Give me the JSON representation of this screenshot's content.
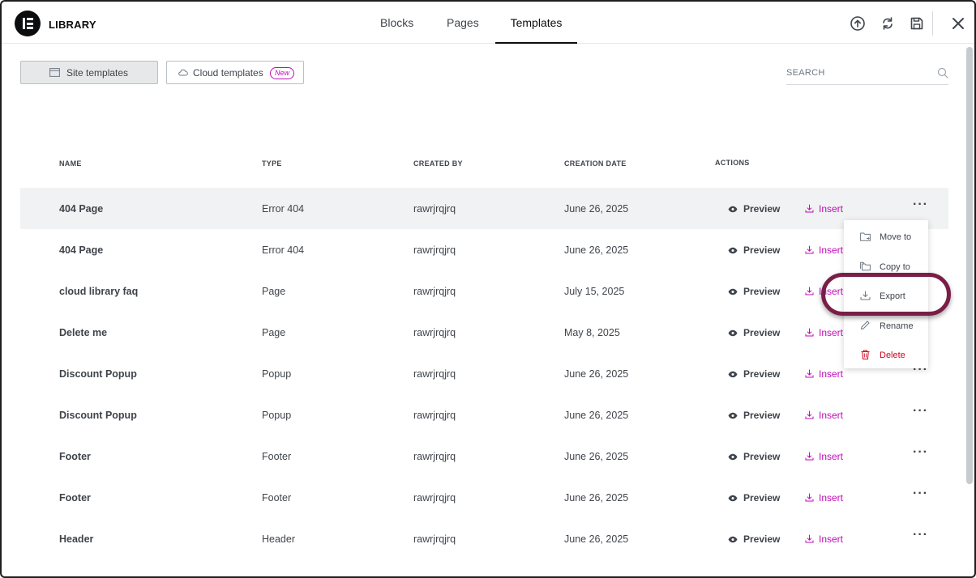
{
  "header": {
    "title": "LIBRARY",
    "tabs": [
      {
        "label": "Blocks"
      },
      {
        "label": "Pages"
      },
      {
        "label": "Templates"
      }
    ],
    "icons": [
      "upload-icon",
      "sync-icon",
      "save-icon",
      "close-icon"
    ]
  },
  "toolbar": {
    "site_templates_label": "Site templates",
    "cloud_templates_label": "Cloud templates",
    "new_badge": "New",
    "search_placeholder": "SEARCH"
  },
  "table": {
    "headers": {
      "name": "NAME",
      "type": "TYPE",
      "created_by": "CREATED BY",
      "creation_date": "CREATION DATE",
      "actions": "ACTIONS"
    },
    "preview_label": "Preview",
    "insert_label": "Insert",
    "rows": [
      {
        "name": "404 Page",
        "type": "Error 404",
        "author": "rawrjrqjrq",
        "date": "June 26, 2025"
      },
      {
        "name": "404 Page",
        "type": "Error 404",
        "author": "rawrjrqjrq",
        "date": "June 26, 2025"
      },
      {
        "name": "cloud library faq",
        "type": "Page",
        "author": "rawrjrqjrq",
        "date": "July 15, 2025"
      },
      {
        "name": "Delete me",
        "type": "Page",
        "author": "rawrjrqjrq",
        "date": "May 8, 2025"
      },
      {
        "name": "Discount Popup",
        "type": "Popup",
        "author": "rawrjrqjrq",
        "date": "June 26, 2025"
      },
      {
        "name": "Discount Popup",
        "type": "Popup",
        "author": "rawrjrqjrq",
        "date": "June 26, 2025"
      },
      {
        "name": "Footer",
        "type": "Footer",
        "author": "rawrjrqjrq",
        "date": "June 26, 2025"
      },
      {
        "name": "Footer",
        "type": "Footer",
        "author": "rawrjrqjrq",
        "date": "June 26, 2025"
      },
      {
        "name": "Header",
        "type": "Header",
        "author": "rawrjrqjrq",
        "date": "June 26, 2025"
      }
    ]
  },
  "context_menu": {
    "items": [
      {
        "label": "Move to",
        "icon": "folder-move-icon"
      },
      {
        "label": "Copy to",
        "icon": "folder-copy-icon"
      },
      {
        "label": "Export",
        "icon": "download-icon"
      },
      {
        "label": "Rename",
        "icon": "pencil-icon"
      },
      {
        "label": "Delete",
        "icon": "trash-icon"
      }
    ]
  },
  "colors": {
    "accent": "#c00bb9",
    "highlight_ring": "#7a1e48",
    "danger": "#d0021b"
  }
}
